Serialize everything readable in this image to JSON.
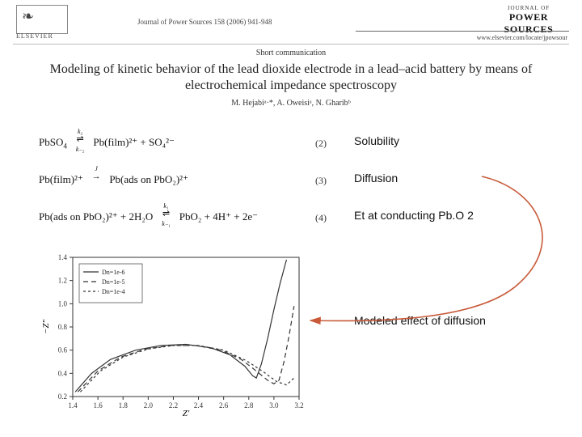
{
  "header": {
    "publisher_name": "ELSEVIER",
    "journal_line": "Journal of Power Sources 158 (2006) 941-948",
    "journal_logo_small": "JOURNAL OF",
    "journal_logo_large": "POWER SOURCES",
    "journal_url": "www.elsevier.com/locate/jpowsour",
    "section_label": "Short communication",
    "title": "Modeling of kinetic behavior of the lead dioxide electrode in a lead–acid battery by means of electrochemical impedance spectroscopy",
    "authors": "M. Hejabiᵃ·*, A. Oweisiᵃ, N. Gharibᵇ"
  },
  "equations": {
    "eq2": {
      "number": "(2)",
      "lhs_a": "PbSO",
      "lhs_a_sub": "4",
      "arrow_top": "k₂",
      "arrow_type": "equil",
      "arrow_bot": "k₋₂",
      "rhs": "Pb(film)²⁺ + SO₄²⁻",
      "label": "Solubility"
    },
    "eq3": {
      "number": "(3)",
      "lhs": "Pb(film)²⁺",
      "arrow_top": "J",
      "arrow_type": "right",
      "rhs": "Pb(ads on PbO₂)²⁺",
      "label": "Diffusion"
    },
    "eq4": {
      "number": "(4)",
      "lhs": "Pb(ads on PbO₂)²⁺ + 2H₂O",
      "arrow_top": "k₁",
      "arrow_type": "equil",
      "arrow_bot": "k₋₁",
      "rhs": "PbO₂ + 4H⁺ + 2e⁻",
      "label": "Et at conducting Pb.O 2"
    }
  },
  "annotations": {
    "modeled": "Modeled effect of diffusion"
  },
  "chart": {
    "type": "line",
    "background_color": "#ffffff",
    "axis_color": "#333333",
    "grid_color": "#ffffff",
    "tick_fontsize": 9,
    "label_fontsize": 11,
    "line_width": 1.2,
    "legend_border": "#555555",
    "x": {
      "label": "Z′",
      "min": 1.4,
      "max": 3.2,
      "step": 0.2
    },
    "y": {
      "label": "−Z″",
      "min": 0.2,
      "max": 1.4,
      "step": 0.2
    },
    "series": [
      {
        "name": "Dn=1e-6",
        "dash": "none",
        "color": "#333333",
        "points": [
          [
            1.42,
            0.24
          ],
          [
            1.55,
            0.4
          ],
          [
            1.7,
            0.52
          ],
          [
            1.9,
            0.6
          ],
          [
            2.1,
            0.64
          ],
          [
            2.3,
            0.65
          ],
          [
            2.5,
            0.62
          ],
          [
            2.65,
            0.56
          ],
          [
            2.77,
            0.46
          ],
          [
            2.83,
            0.38
          ],
          [
            2.86,
            0.36
          ],
          [
            2.9,
            0.48
          ],
          [
            2.95,
            0.7
          ],
          [
            3.0,
            0.95
          ],
          [
            3.05,
            1.18
          ],
          [
            3.1,
            1.38
          ]
        ]
      },
      {
        "name": "Dn=1e-5",
        "dash": "6,4",
        "color": "#333333",
        "points": [
          [
            1.44,
            0.24
          ],
          [
            1.6,
            0.42
          ],
          [
            1.78,
            0.54
          ],
          [
            1.98,
            0.61
          ],
          [
            2.18,
            0.64
          ],
          [
            2.38,
            0.64
          ],
          [
            2.58,
            0.6
          ],
          [
            2.74,
            0.52
          ],
          [
            2.86,
            0.42
          ],
          [
            2.95,
            0.34
          ],
          [
            3.0,
            0.31
          ],
          [
            3.04,
            0.34
          ],
          [
            3.08,
            0.5
          ],
          [
            3.12,
            0.72
          ],
          [
            3.16,
            0.98
          ]
        ]
      },
      {
        "name": "Dn=1e-4",
        "dash": "3,3",
        "color": "#333333",
        "points": [
          [
            1.46,
            0.24
          ],
          [
            1.62,
            0.42
          ],
          [
            1.8,
            0.54
          ],
          [
            2.0,
            0.61
          ],
          [
            2.2,
            0.64
          ],
          [
            2.4,
            0.64
          ],
          [
            2.6,
            0.6
          ],
          [
            2.78,
            0.51
          ],
          [
            2.92,
            0.41
          ],
          [
            3.02,
            0.33
          ],
          [
            3.1,
            0.3
          ],
          [
            3.16,
            0.36
          ]
        ]
      }
    ]
  },
  "arrow": {
    "color": "#c85a3a",
    "width": 1.6
  }
}
